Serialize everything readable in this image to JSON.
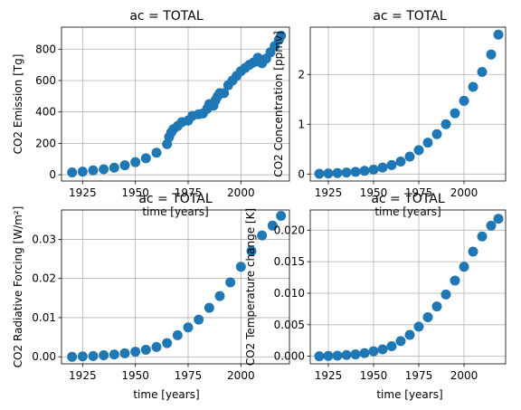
{
  "colors": {
    "marker": "#1f77b4",
    "grid": "#b0b0b0",
    "axis": "#000000"
  },
  "chart_data": [
    {
      "type": "scatter",
      "title": "ac = TOTAL",
      "xlabel": "time [years]",
      "ylabel": "CO2 Emission [Tg]",
      "xlim": [
        1915,
        2023
      ],
      "ylim": [
        -40,
        940
      ],
      "xticks": [
        1925,
        1950,
        1975,
        2000
      ],
      "yticks": [
        0,
        200,
        400,
        600,
        800
      ],
      "ytick_labels": [
        "0",
        "200",
        "400",
        "600",
        "800"
      ],
      "grid": true,
      "series": [
        {
          "x": [
            1920,
            1925,
            1930,
            1935,
            1940,
            1945,
            1950,
            1955,
            1960,
            1965,
            1966,
            1967,
            1968,
            1970,
            1972,
            1975,
            1977,
            1980,
            1982,
            1984,
            1985,
            1987,
            1988,
            1989,
            1990,
            1992,
            1994,
            1996,
            1998,
            2000,
            2002,
            2004,
            2006,
            2008,
            2009,
            2010,
            2012,
            2014,
            2016,
            2018,
            2019
          ],
          "y": [
            15,
            20,
            28,
            35,
            45,
            60,
            80,
            105,
            140,
            195,
            240,
            270,
            290,
            310,
            335,
            345,
            375,
            385,
            390,
            420,
            450,
            440,
            475,
            500,
            520,
            520,
            570,
            600,
            630,
            660,
            680,
            700,
            715,
            745,
            720,
            710,
            740,
            780,
            820,
            860,
            885
          ]
        }
      ]
    },
    {
      "type": "scatter",
      "title": "ac = TOTAL",
      "xlabel": "time [years]",
      "ylabel": "CO2 Concentration [ppmv]",
      "xlim": [
        1915,
        2023
      ],
      "ylim": [
        -0.14,
        2.95
      ],
      "xticks": [
        1925,
        1950,
        1975,
        2000
      ],
      "yticks": [
        0,
        1,
        2
      ],
      "ytick_labels": [
        "0",
        "1",
        "2"
      ],
      "grid": true,
      "series": [
        {
          "x": [
            1920,
            1925,
            1930,
            1935,
            1940,
            1945,
            1950,
            1955,
            1960,
            1965,
            1970,
            1975,
            1980,
            1985,
            1990,
            1995,
            2000,
            2005,
            2010,
            2015,
            2019
          ],
          "y": [
            0.005,
            0.012,
            0.02,
            0.03,
            0.045,
            0.065,
            0.09,
            0.13,
            0.18,
            0.25,
            0.35,
            0.48,
            0.63,
            0.8,
            1.0,
            1.22,
            1.47,
            1.75,
            2.05,
            2.4,
            2.8
          ]
        }
      ]
    },
    {
      "type": "scatter",
      "title": "ac = TOTAL",
      "xlabel": "time [years]",
      "ylabel": "CO2 Radiative Forcing [W/m²]",
      "xlim": [
        1915,
        2023
      ],
      "ylim": [
        -0.0018,
        0.0375
      ],
      "xticks": [
        1925,
        1950,
        1975,
        2000
      ],
      "yticks": [
        0,
        0.01,
        0.02,
        0.03
      ],
      "ytick_labels": [
        "0.00",
        "0.01",
        "0.02",
        "0.03"
      ],
      "grid": true,
      "series": [
        {
          "x": [
            1920,
            1925,
            1930,
            1935,
            1940,
            1945,
            1950,
            1955,
            1960,
            1965,
            1970,
            1975,
            1980,
            1985,
            1990,
            1995,
            2000,
            2005,
            2010,
            2015,
            2019
          ],
          "y": [
            0.0,
            0.0001,
            0.0002,
            0.0004,
            0.0006,
            0.0009,
            0.0013,
            0.0018,
            0.0025,
            0.0035,
            0.0055,
            0.0075,
            0.0095,
            0.0125,
            0.0155,
            0.019,
            0.023,
            0.027,
            0.031,
            0.0335,
            0.036
          ]
        }
      ]
    },
    {
      "type": "scatter",
      "title": "ac = TOTAL",
      "xlabel": "time [years]",
      "ylabel": "CO2 Temperature change [K]",
      "xlim": [
        1915,
        2023
      ],
      "ylim": [
        -0.0012,
        0.0232
      ],
      "xticks": [
        1925,
        1950,
        1975,
        2000
      ],
      "yticks": [
        0,
        0.005,
        0.01,
        0.015,
        0.02
      ],
      "ytick_labels": [
        "0.000",
        "0.005",
        "0.010",
        "0.015",
        "0.020"
      ],
      "grid": true,
      "series": [
        {
          "x": [
            1920,
            1925,
            1930,
            1935,
            1940,
            1945,
            1950,
            1955,
            1960,
            1965,
            1970,
            1975,
            1980,
            1985,
            1990,
            1995,
            2000,
            2005,
            2010,
            2015,
            2019
          ],
          "y": [
            0.0,
            5e-05,
            0.0001,
            0.0002,
            0.0003,
            0.0005,
            0.0008,
            0.0011,
            0.0016,
            0.0024,
            0.0034,
            0.0047,
            0.0062,
            0.0079,
            0.0098,
            0.012,
            0.0142,
            0.0166,
            0.019,
            0.0207,
            0.0218
          ]
        }
      ]
    }
  ]
}
